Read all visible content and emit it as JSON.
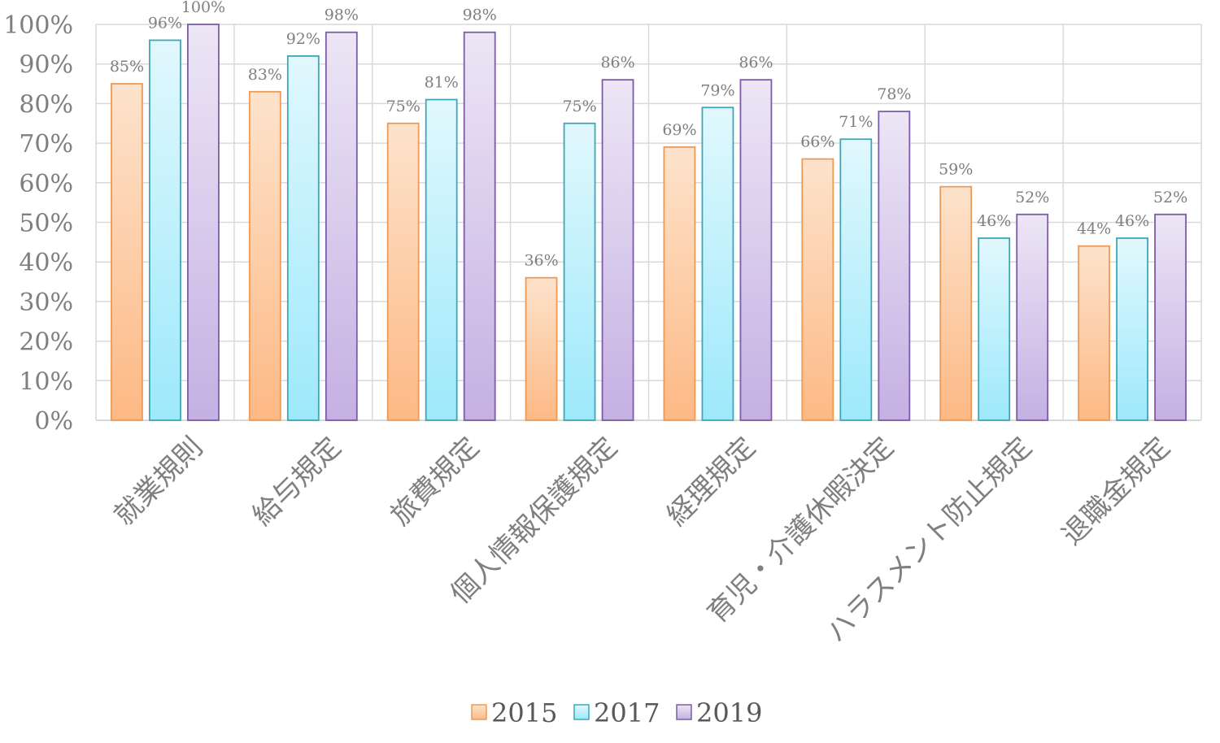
{
  "chart_data": {
    "type": "bar",
    "categories": [
      "就業規則",
      "給与規定",
      "旅費規定",
      "個人情報保護規定",
      "経理規定",
      "育児・介護休暇決定",
      "ハラスメント防止規定",
      "退職金規定"
    ],
    "series": [
      {
        "name": "2015",
        "values": [
          85,
          83,
          75,
          36,
          69,
          66,
          59,
          44
        ],
        "labels": [
          "85%",
          "83%",
          "75%",
          "36%",
          "69%",
          "66%",
          "59%",
          "44%"
        ],
        "color_top": "#fde3cc",
        "color_bottom": "#fdb985",
        "stroke": "#ed9a57"
      },
      {
        "name": "2017",
        "values": [
          96,
          92,
          81,
          75,
          79,
          71,
          46,
          46
        ],
        "labels": [
          "96%",
          "92%",
          "81%",
          "75%",
          "79%",
          "71%",
          "46%",
          "46%"
        ],
        "color_top": "#e1f8fd",
        "color_bottom": "#9de9fb",
        "stroke": "#3aa8b8"
      },
      {
        "name": "2019",
        "values": [
          100,
          98,
          98,
          86,
          86,
          78,
          52,
          52
        ],
        "labels": [
          "100%",
          "98%",
          "98%",
          "86%",
          "86%",
          "78%",
          "52%",
          "52%"
        ],
        "color_top": "#ece6f5",
        "color_bottom": "#c5b0e3",
        "stroke": "#7b5ca6"
      }
    ],
    "yticks": [
      "0%",
      "10%",
      "20%",
      "30%",
      "40%",
      "50%",
      "60%",
      "70%",
      "80%",
      "90%",
      "100%"
    ],
    "ylim": [
      0,
      100
    ],
    "grid": true,
    "legend": "bottom-center"
  }
}
